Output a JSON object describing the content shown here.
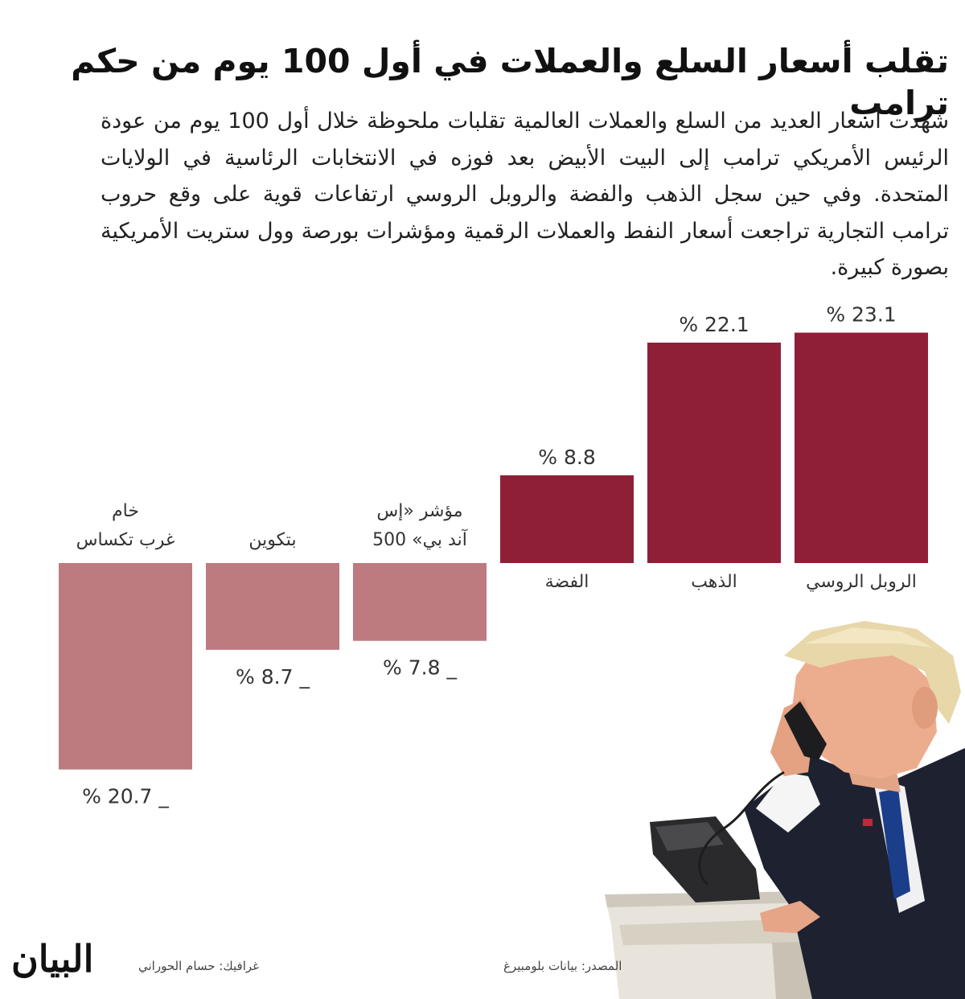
{
  "title": "تقلب أسعار السلع والعملات في أول 100 يوم من حكم ترامب",
  "intro": "شهدت أسعار العديد من السلع والعملات العالمية تقلبات ملحوظة خلال أول 100 يوم من عودة الرئيس الأمريكي ترامب إلى البيت الأبيض بعد فوزه في الانتخابات الرئاسية في الولايات المتحدة. وفي حين سجل الذهب والفضة والروبل الروسي ارتفاعات قوية على وقع حروب ترامب التجارية تراجعت أسعار النفط والعملات الرقمية ومؤشرات بورصة وول ستريت الأمريكية بصورة كبيرة.",
  "chart_data": {
    "type": "bar",
    "unit": "%",
    "categories": [
      {
        "name": "الروبل الروسي",
        "label_lines": [
          "الروبل الروسي"
        ],
        "value": 23.1,
        "value_label": "% 23.1"
      },
      {
        "name": "الذهب",
        "label_lines": [
          "الذهب"
        ],
        "value": 22.1,
        "value_label": "% 22.1"
      },
      {
        "name": "الفضة",
        "label_lines": [
          "الفضة"
        ],
        "value": 8.8,
        "value_label": "% 8.8"
      },
      {
        "name": "مؤشر «إس آند بي» 500",
        "label_lines": [
          "مؤشر «إس",
          "آند بي» 500"
        ],
        "value": -7.8,
        "value_label": "% 7.8 _"
      },
      {
        "name": "بتكوين",
        "label_lines": [
          "بتكوين"
        ],
        "value": -8.7,
        "value_label": "% 8.7 _"
      },
      {
        "name": "خام غرب تكساس",
        "label_lines": [
          "خام",
          "غرب تكساس"
        ],
        "value": -20.7,
        "value_label": "% 20.7 _"
      }
    ],
    "ylim": [
      -20.7,
      23.1
    ],
    "colors": {
      "positive": "#8f1f37",
      "negative": "#bd7a7f"
    }
  },
  "footer": {
    "source": "المصدر: بيانات بلومبيرغ",
    "credit": "غرافيك: حسام الحوراني",
    "logo": "البيان"
  }
}
